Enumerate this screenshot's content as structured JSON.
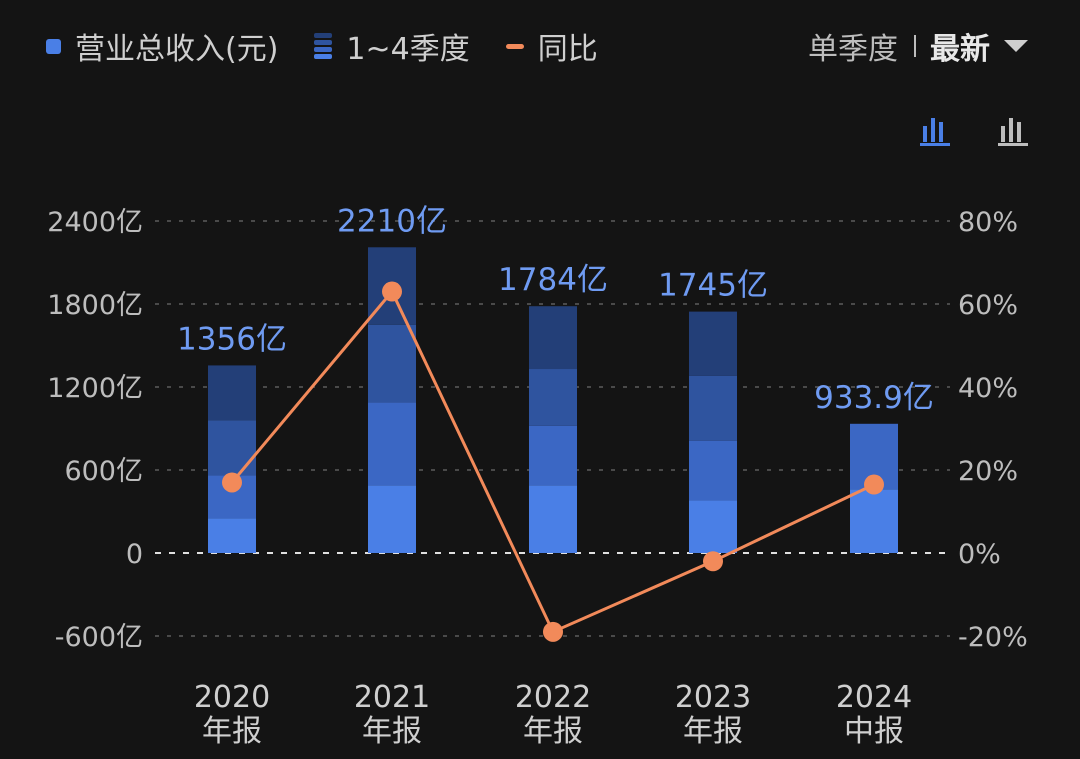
{
  "legend": {
    "revenue": "营业总收入(元)",
    "quarters": "1~4季度",
    "yoy": "同比"
  },
  "controls": {
    "mode": "单季度",
    "latest": "最新"
  },
  "icons": {
    "stacked": "stacked-bar-chart-icon",
    "grouped": "bar-chart-icon",
    "dropdown": "caret-down-icon"
  },
  "colors": {
    "q1": "#4a7fe6",
    "q2": "#3b67c4",
    "q3": "#2f549f",
    "q4": "#233f78",
    "line": "#f28a5a",
    "label": "#6f9bf2",
    "axis": "#bdbdbd"
  },
  "chart_data": {
    "type": "bar",
    "categories": [
      {
        "year": "2020",
        "period": "年报"
      },
      {
        "year": "2021",
        "period": "年报"
      },
      {
        "year": "2022",
        "period": "年报"
      },
      {
        "year": "2023",
        "period": "年报"
      },
      {
        "year": "2024",
        "period": "中报"
      }
    ],
    "series": [
      {
        "values": [
          250,
          490,
          490,
          380,
          460
        ]
      },
      {
        "values": [
          310,
          600,
          430,
          430,
          474
        ]
      },
      {
        "values": [
          400,
          560,
          410,
          470,
          0
        ]
      },
      {
        "values": [
          396,
          560,
          454,
          465,
          0
        ]
      }
    ],
    "totals": [
      1356,
      2210,
      1784,
      1745,
      933.9
    ],
    "total_labels": [
      "1356亿",
      "2210亿",
      "1784亿",
      "1745亿",
      "933.9亿"
    ],
    "yoy": [
      17,
      63,
      -19,
      -2,
      16.5
    ],
    "left_axis": {
      "min": -600,
      "max": 2400,
      "ticks": [
        {
          "value": -600,
          "label": "-600亿"
        },
        {
          "value": 0,
          "label": "0"
        },
        {
          "value": 600,
          "label": "600亿"
        },
        {
          "value": 1200,
          "label": "1200亿"
        },
        {
          "value": 1800,
          "label": "1800亿"
        },
        {
          "value": 2400,
          "label": "2400亿"
        }
      ]
    },
    "right_axis": {
      "min": -20,
      "max": 80,
      "ticks": [
        {
          "value": -20,
          "label": "-20%"
        },
        {
          "value": 0,
          "label": "0%"
        },
        {
          "value": 20,
          "label": "20%"
        },
        {
          "value": 40,
          "label": "40%"
        },
        {
          "value": 60,
          "label": "60%"
        },
        {
          "value": 80,
          "label": "80%"
        }
      ]
    },
    "grid": true,
    "legend_position": "top-left"
  }
}
